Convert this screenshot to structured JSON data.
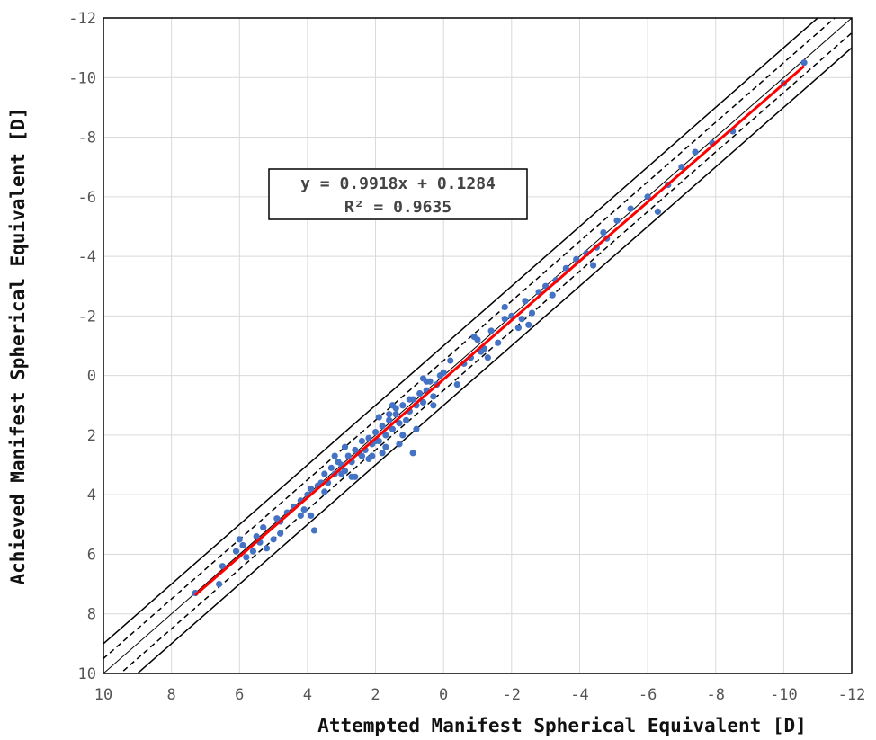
{
  "chart_data": {
    "type": "scatter",
    "title": "",
    "xlabel": "Attempted Manifest Spherical Equivalent [D]",
    "ylabel": "Achieved Manifest Spherical Equivalent [D]",
    "xlim": [
      10,
      -12
    ],
    "ylim": [
      10,
      -12
    ],
    "x_ticks": [
      10,
      8,
      6,
      4,
      2,
      0,
      -2,
      -4,
      -6,
      -8,
      -10,
      -12
    ],
    "y_ticks": [
      10,
      8,
      6,
      4,
      2,
      0,
      -2,
      -4,
      -6,
      -8,
      -10,
      -12
    ],
    "grid": true,
    "legend": "none",
    "annotation": {
      "equation": "y = 0.9918x + 0.1284",
      "r_squared": "R² = 0.9635"
    },
    "trendline": {
      "slope": 0.9918,
      "intercept": 0.1284,
      "x_range": [
        7.3,
        -10.6
      ],
      "color": "#ff0000"
    },
    "reference_lines": [
      {
        "offset": 0,
        "style": "solid-thin"
      },
      {
        "offset": 0.5,
        "style": "dashed"
      },
      {
        "offset": -0.5,
        "style": "dashed"
      },
      {
        "offset": 1.0,
        "style": "solid"
      },
      {
        "offset": -1.0,
        "style": "solid"
      }
    ],
    "point_color": "#4472c4",
    "series": [
      {
        "x": [
          7.3,
          6.6,
          6.5,
          6.1,
          5.9,
          5.8,
          5.5,
          5.4,
          5.3,
          5.2,
          5.0,
          4.9,
          4.8,
          4.6,
          4.4,
          4.2,
          4.1,
          4.0,
          3.9,
          3.9,
          3.7,
          3.6,
          3.5,
          3.4,
          3.3,
          3.2,
          3.1,
          3.0,
          2.9,
          2.8,
          2.7,
          2.6,
          2.5,
          2.4,
          2.3,
          2.2,
          2.1,
          2.0,
          1.9,
          1.8,
          1.7,
          1.6,
          1.5,
          1.4,
          1.3,
          1.2,
          1.1,
          1.0,
          0.9,
          0.8,
          0.7,
          0.6,
          0.5,
          0.4,
          0.3,
          0.2,
          0.1,
          0.0,
          -0.2,
          -0.4,
          -0.6,
          -0.8,
          -1.0,
          -1.2,
          -1.4,
          -1.6,
          -1.8,
          -2.0,
          -2.2,
          -2.4,
          -2.6,
          -2.8,
          -3.0,
          -3.3,
          -3.6,
          -3.9,
          -4.2,
          -4.5,
          -4.8,
          -5.1,
          -5.5,
          -6.0,
          -6.3,
          -6.6,
          -7.0,
          -7.4,
          -7.9,
          -8.5,
          -10.0,
          -10.6,
          5.6,
          4.8,
          3.8,
          3.0,
          2.6,
          2.4,
          2.2,
          2.0,
          1.8,
          1.6,
          1.4,
          1.2,
          1.0,
          0.8,
          0.6,
          0.3,
          -0.9,
          -1.3,
          -1.8,
          -2.5,
          -3.2,
          -4.4,
          4.2,
          3.5,
          2.9,
          1.7,
          0.5,
          -1.1,
          -2.3,
          -4.7,
          6.0,
          3.2,
          1.9,
          1.3,
          0.9,
          1.5,
          2.1,
          2.7
        ],
        "y": [
          7.3,
          7.0,
          6.4,
          5.9,
          5.7,
          6.1,
          5.4,
          5.6,
          5.1,
          5.8,
          5.5,
          4.8,
          4.9,
          4.6,
          4.4,
          4.2,
          4.5,
          4.0,
          4.7,
          3.8,
          3.7,
          3.6,
          3.3,
          3.6,
          3.1,
          3.3,
          2.9,
          3.0,
          3.2,
          2.7,
          2.9,
          2.5,
          2.6,
          2.2,
          2.5,
          2.1,
          2.3,
          1.9,
          2.2,
          1.7,
          2.0,
          1.5,
          1.8,
          1.3,
          1.6,
          1.0,
          1.5,
          1.2,
          0.8,
          1.0,
          0.6,
          0.9,
          0.5,
          0.2,
          0.7,
          0.3,
          0.0,
          -0.1,
          -0.5,
          0.3,
          -0.4,
          -0.6,
          -1.2,
          -0.9,
          -1.5,
          -1.1,
          -1.9,
          -2.0,
          -1.6,
          -2.5,
          -2.1,
          -2.8,
          -3.0,
          -3.2,
          -3.6,
          -3.9,
          -4.1,
          -4.3,
          -4.6,
          -5.2,
          -5.6,
          -6.0,
          -5.5,
          -6.4,
          -7.0,
          -7.5,
          -7.8,
          -8.2,
          -9.8,
          -10.5,
          5.9,
          5.3,
          5.2,
          3.3,
          3.4,
          2.7,
          2.8,
          2.2,
          2.6,
          1.3,
          1.1,
          2.0,
          0.8,
          1.8,
          0.1,
          1.0,
          -1.3,
          -0.6,
          -2.3,
          -1.7,
          -2.7,
          -3.7,
          4.7,
          3.9,
          2.4,
          2.4,
          0.2,
          -0.8,
          -1.9,
          -4.8,
          5.5,
          2.7,
          1.4,
          2.3,
          2.6,
          1.0,
          2.7,
          3.4
        ]
      }
    ]
  }
}
